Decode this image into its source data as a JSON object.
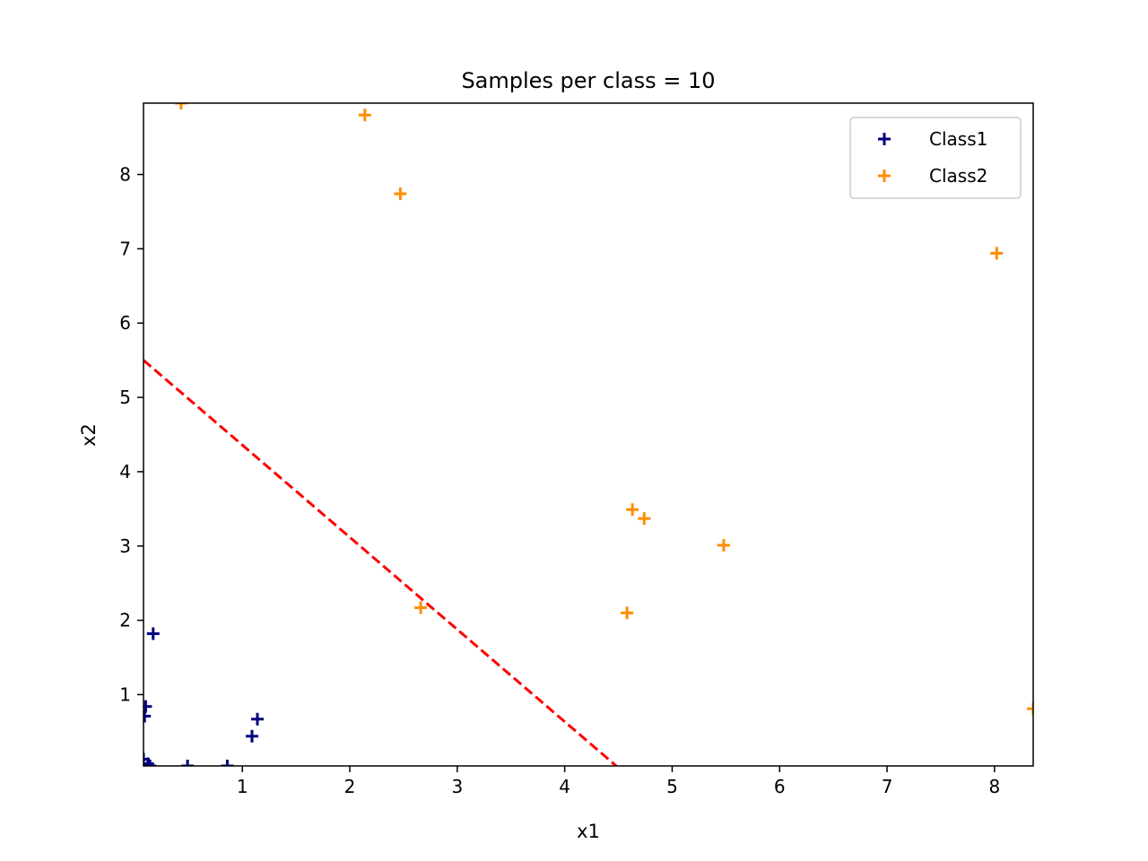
{
  "chart_data": {
    "type": "scatter",
    "title": "Samples per class = 10",
    "xlabel": "x1",
    "ylabel": "x2",
    "xlim": [
      0.08,
      8.36
    ],
    "ylim": [
      0.04,
      8.96
    ],
    "xticks": [
      1,
      2,
      3,
      4,
      5,
      6,
      7,
      8
    ],
    "yticks": [
      1,
      2,
      3,
      4,
      5,
      6,
      7,
      8
    ],
    "grid": false,
    "legend_position": "upper-right",
    "marker": "plus",
    "series": [
      {
        "name": "Class1",
        "color": "#000080",
        "points": [
          [
            0.17,
            1.82
          ],
          [
            0.1,
            0.84
          ],
          [
            0.09,
            0.71
          ],
          [
            1.14,
            0.67
          ],
          [
            1.09,
            0.44
          ],
          [
            0.08,
            0.13
          ],
          [
            0.12,
            0.07
          ],
          [
            0.49,
            0.04
          ],
          [
            0.86,
            0.04
          ],
          [
            0.14,
            0.04
          ]
        ]
      },
      {
        "name": "Class2",
        "color": "#FF8C00",
        "points": [
          [
            0.43,
            8.96
          ],
          [
            2.14,
            8.8
          ],
          [
            2.47,
            7.74
          ],
          [
            8.02,
            6.94
          ],
          [
            4.63,
            3.49
          ],
          [
            4.74,
            3.37
          ],
          [
            5.48,
            3.01
          ],
          [
            2.66,
            2.17
          ],
          [
            4.58,
            2.1
          ],
          [
            8.36,
            0.81
          ]
        ]
      }
    ],
    "lines": [
      {
        "style": "dashed",
        "color": "#FF0000",
        "points": [
          [
            0.08,
            5.5
          ],
          [
            4.48,
            0.04
          ]
        ]
      }
    ]
  }
}
